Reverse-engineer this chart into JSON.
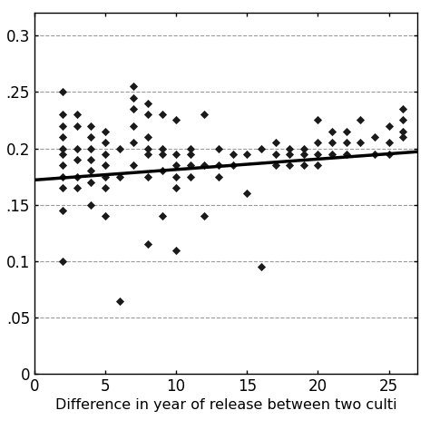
{
  "scatter_x": [
    2,
    2,
    2,
    2,
    2,
    2,
    2,
    2,
    2,
    2,
    2,
    3,
    3,
    3,
    3,
    3,
    3,
    4,
    4,
    4,
    4,
    4,
    4,
    4,
    5,
    5,
    5,
    5,
    5,
    5,
    5,
    6,
    6,
    6,
    7,
    7,
    7,
    7,
    7,
    7,
    8,
    8,
    8,
    8,
    8,
    8,
    8,
    9,
    9,
    9,
    9,
    9,
    10,
    10,
    10,
    10,
    10,
    10,
    11,
    11,
    11,
    11,
    12,
    12,
    12,
    13,
    13,
    13,
    14,
    14,
    15,
    15,
    16,
    16,
    17,
    17,
    17,
    18,
    18,
    18,
    19,
    19,
    19,
    20,
    20,
    20,
    20,
    21,
    21,
    21,
    22,
    22,
    22,
    23,
    23,
    24,
    24,
    25,
    25,
    25,
    26,
    26,
    26,
    26
  ],
  "scatter_y": [
    0.25,
    0.23,
    0.22,
    0.21,
    0.2,
    0.195,
    0.185,
    0.175,
    0.165,
    0.145,
    0.1,
    0.23,
    0.22,
    0.2,
    0.19,
    0.175,
    0.165,
    0.22,
    0.21,
    0.2,
    0.19,
    0.18,
    0.17,
    0.15,
    0.215,
    0.205,
    0.195,
    0.185,
    0.175,
    0.165,
    0.14,
    0.2,
    0.175,
    0.065,
    0.255,
    0.245,
    0.235,
    0.22,
    0.205,
    0.185,
    0.24,
    0.23,
    0.21,
    0.2,
    0.195,
    0.175,
    0.115,
    0.23,
    0.2,
    0.195,
    0.18,
    0.14,
    0.225,
    0.195,
    0.185,
    0.175,
    0.165,
    0.11,
    0.2,
    0.195,
    0.185,
    0.175,
    0.23,
    0.185,
    0.14,
    0.2,
    0.185,
    0.175,
    0.195,
    0.185,
    0.195,
    0.16,
    0.2,
    0.095,
    0.205,
    0.195,
    0.185,
    0.2,
    0.195,
    0.185,
    0.2,
    0.195,
    0.185,
    0.225,
    0.205,
    0.195,
    0.185,
    0.215,
    0.205,
    0.195,
    0.215,
    0.205,
    0.195,
    0.225,
    0.205,
    0.21,
    0.195,
    0.22,
    0.205,
    0.195,
    0.235,
    0.225,
    0.215,
    0.21
  ],
  "trend_x": [
    0,
    27
  ],
  "trend_y": [
    0.172,
    0.197
  ],
  "xlim": [
    0,
    27
  ],
  "ylim": [
    0,
    0.32
  ],
  "xticks": [
    0,
    5,
    10,
    15,
    20,
    25
  ],
  "yticks": [
    0,
    0.05,
    0.1,
    0.15,
    0.2,
    0.25,
    0.3
  ],
  "ytick_labels": [
    "0",
    ".05",
    "0.1",
    ".15",
    "0.2",
    ".25",
    "0.3"
  ],
  "xlabel": "Difference in year of release between two culti",
  "marker_color": "#1a1a1a",
  "line_color": "#000000",
  "grid_color": "#999999",
  "bg_color": "#ffffff"
}
